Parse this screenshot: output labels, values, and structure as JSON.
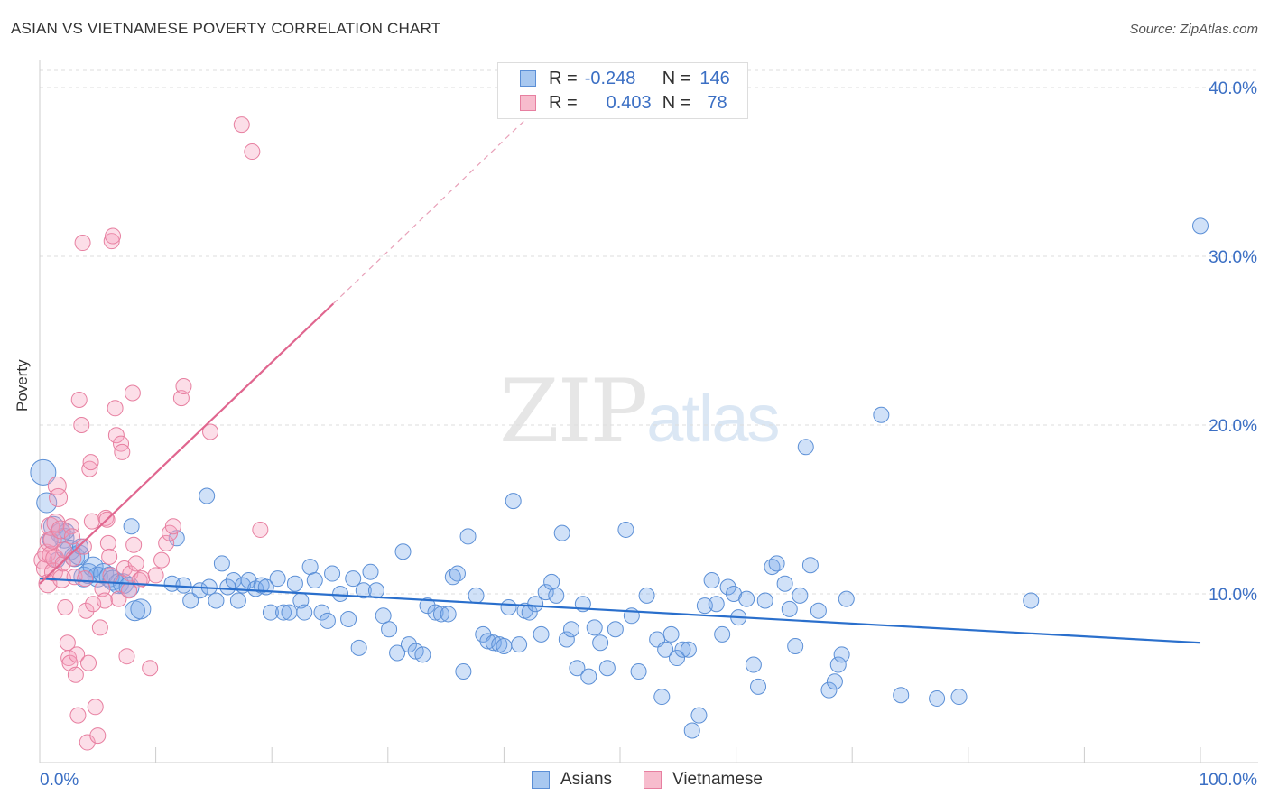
{
  "header": {
    "title": "ASIAN VS VIETNAMESE POVERTY CORRELATION CHART",
    "source": "Source: ZipAtlas.com"
  },
  "watermark": {
    "zip": "ZIP",
    "atlas": "atlas"
  },
  "stats_legend": {
    "rows": [
      {
        "r_label": "R =",
        "r_value": "-0.248",
        "n_label": "N =",
        "n_value": "146",
        "color": "#a8c8f0",
        "stroke": "#5b8fd6"
      },
      {
        "r_label": "R =",
        "r_value": "0.403",
        "n_label": "N =",
        "n_value": "78",
        "color": "#f7bccd",
        "stroke": "#e77fa0"
      }
    ]
  },
  "series_legend": {
    "asians": "Asians",
    "vietnamese": "Vietnamese"
  },
  "colors": {
    "asian_fill": "rgba(120,170,235,0.35)",
    "asian_stroke": "#5b8fd6",
    "asian_line": "#2a6fcc",
    "viet_fill": "rgba(245,160,190,0.35)",
    "viet_stroke": "#e77fa0",
    "viet_line": "#e0668f",
    "axis_text": "#3b6fc4",
    "grid": "#dddddd"
  },
  "chart_data": {
    "type": "scatter",
    "title": "ASIAN VS VIETNAMESE POVERTY CORRELATION CHART",
    "xlabel": "",
    "ylabel": "Poverty",
    "xlim": [
      0,
      100
    ],
    "ylim": [
      0,
      40
    ],
    "x_tick_labels": [
      "0.0%",
      "100.0%"
    ],
    "y_ticks": [
      10,
      20,
      30,
      40
    ],
    "y_tick_labels": [
      "10.0%",
      "20.0%",
      "30.0%",
      "40.0%"
    ],
    "grid": true,
    "legend_position": "top-center",
    "series": [
      {
        "name": "Asians",
        "r": -0.248,
        "n": 146,
        "trend": {
          "x": [
            0,
            100
          ],
          "y": [
            10.9,
            7.1
          ]
        },
        "points": [
          [
            0.3,
            17.2
          ],
          [
            0.6,
            15.4
          ],
          [
            1.2,
            14.0
          ],
          [
            1.8,
            13.6
          ],
          [
            2.1,
            13.3
          ],
          [
            2.6,
            12.6
          ],
          [
            3.0,
            12.2
          ],
          [
            3.4,
            12.3
          ],
          [
            3.8,
            11.0
          ],
          [
            4.2,
            11.2
          ],
          [
            4.6,
            11.6
          ],
          [
            5.0,
            11.0
          ],
          [
            5.5,
            11.2
          ],
          [
            6.0,
            11.0
          ],
          [
            6.3,
            10.8
          ],
          [
            6.8,
            10.6
          ],
          [
            7.2,
            10.6
          ],
          [
            7.7,
            10.4
          ],
          [
            8.2,
            9.0
          ],
          [
            8.7,
            9.1
          ],
          [
            2.3,
            13.7
          ],
          [
            3.5,
            12.8
          ],
          [
            7.9,
            14.0
          ],
          [
            11.8,
            13.3
          ],
          [
            14.4,
            15.8
          ],
          [
            11.4,
            10.6
          ],
          [
            12.4,
            10.5
          ],
          [
            13.0,
            9.6
          ],
          [
            13.8,
            10.2
          ],
          [
            14.6,
            10.4
          ],
          [
            15.2,
            9.6
          ],
          [
            15.7,
            11.8
          ],
          [
            16.2,
            10.4
          ],
          [
            16.7,
            10.8
          ],
          [
            17.1,
            9.6
          ],
          [
            17.5,
            10.5
          ],
          [
            18.0,
            10.8
          ],
          [
            18.6,
            10.3
          ],
          [
            19.1,
            10.5
          ],
          [
            19.5,
            10.4
          ],
          [
            19.9,
            8.9
          ],
          [
            20.5,
            10.9
          ],
          [
            21.0,
            8.9
          ],
          [
            21.5,
            8.9
          ],
          [
            22.0,
            10.6
          ],
          [
            22.5,
            9.6
          ],
          [
            22.8,
            8.9
          ],
          [
            23.3,
            11.6
          ],
          [
            23.7,
            10.8
          ],
          [
            24.3,
            8.9
          ],
          [
            24.8,
            8.4
          ],
          [
            25.2,
            11.2
          ],
          [
            25.9,
            10.0
          ],
          [
            26.6,
            8.5
          ],
          [
            27.0,
            10.9
          ],
          [
            27.5,
            6.8
          ],
          [
            27.9,
            10.2
          ],
          [
            28.5,
            11.3
          ],
          [
            29.0,
            10.2
          ],
          [
            29.6,
            8.7
          ],
          [
            30.1,
            7.9
          ],
          [
            30.8,
            6.5
          ],
          [
            31.3,
            12.5
          ],
          [
            31.8,
            7.0
          ],
          [
            32.4,
            6.6
          ],
          [
            33.0,
            6.4
          ],
          [
            33.4,
            9.3
          ],
          [
            34.1,
            8.9
          ],
          [
            34.6,
            8.8
          ],
          [
            35.2,
            8.8
          ],
          [
            35.6,
            11.0
          ],
          [
            36.0,
            11.2
          ],
          [
            36.5,
            5.4
          ],
          [
            36.9,
            13.4
          ],
          [
            37.6,
            9.9
          ],
          [
            38.2,
            7.6
          ],
          [
            38.6,
            7.2
          ],
          [
            39.1,
            7.1
          ],
          [
            39.6,
            7.0
          ],
          [
            40.0,
            6.9
          ],
          [
            40.4,
            9.2
          ],
          [
            40.8,
            15.5
          ],
          [
            41.3,
            7.0
          ],
          [
            41.8,
            9.0
          ],
          [
            42.2,
            8.9
          ],
          [
            42.7,
            9.4
          ],
          [
            43.2,
            7.6
          ],
          [
            43.6,
            10.1
          ],
          [
            44.1,
            10.7
          ],
          [
            44.5,
            9.9
          ],
          [
            45.0,
            13.6
          ],
          [
            45.4,
            7.3
          ],
          [
            45.8,
            7.9
          ],
          [
            46.3,
            5.6
          ],
          [
            46.8,
            9.4
          ],
          [
            47.3,
            5.1
          ],
          [
            47.8,
            8.0
          ],
          [
            48.3,
            7.1
          ],
          [
            48.9,
            5.6
          ],
          [
            49.6,
            7.9
          ],
          [
            50.5,
            13.8
          ],
          [
            51.0,
            8.7
          ],
          [
            51.6,
            5.4
          ],
          [
            52.3,
            9.9
          ],
          [
            53.2,
            7.3
          ],
          [
            53.6,
            3.9
          ],
          [
            53.9,
            6.7
          ],
          [
            54.4,
            7.6
          ],
          [
            54.9,
            6.2
          ],
          [
            55.4,
            6.7
          ],
          [
            55.9,
            6.7
          ],
          [
            56.2,
            1.9
          ],
          [
            56.8,
            2.8
          ],
          [
            57.3,
            9.3
          ],
          [
            57.9,
            10.8
          ],
          [
            58.3,
            9.4
          ],
          [
            58.8,
            7.6
          ],
          [
            59.3,
            10.4
          ],
          [
            59.8,
            10.0
          ],
          [
            60.2,
            8.6
          ],
          [
            60.9,
            9.7
          ],
          [
            61.5,
            5.8
          ],
          [
            61.9,
            4.5
          ],
          [
            62.5,
            9.6
          ],
          [
            63.1,
            11.6
          ],
          [
            63.5,
            11.8
          ],
          [
            64.2,
            10.6
          ],
          [
            64.6,
            9.1
          ],
          [
            65.1,
            6.9
          ],
          [
            65.5,
            9.9
          ],
          [
            66.0,
            18.7
          ],
          [
            66.4,
            11.7
          ],
          [
            67.1,
            9.0
          ],
          [
            68.0,
            4.3
          ],
          [
            68.5,
            4.8
          ],
          [
            68.8,
            5.8
          ],
          [
            69.1,
            6.4
          ],
          [
            69.5,
            9.7
          ],
          [
            72.5,
            20.6
          ],
          [
            74.2,
            4.0
          ],
          [
            77.3,
            3.8
          ],
          [
            79.2,
            3.9
          ],
          [
            85.4,
            9.6
          ],
          [
            100.0,
            31.8
          ],
          [
            0.9,
            13.2
          ],
          [
            1.5,
            12.0
          ]
        ]
      },
      {
        "name": "Vietnamese",
        "r": 0.403,
        "n": 78,
        "trend": {
          "x": [
            0,
            25.3
          ],
          "y": [
            10.6,
            27.2
          ]
        },
        "trend_extension": {
          "x": [
            25.3,
            42.0
          ],
          "y": [
            27.2,
            38.2
          ]
        },
        "points": [
          [
            0.3,
            12.0
          ],
          [
            0.5,
            11.5
          ],
          [
            0.6,
            12.4
          ],
          [
            0.7,
            10.6
          ],
          [
            0.8,
            13.1
          ],
          [
            0.9,
            14.0
          ],
          [
            1.0,
            12.3
          ],
          [
            1.1,
            13.2
          ],
          [
            1.2,
            11.3
          ],
          [
            1.3,
            12.1
          ],
          [
            1.4,
            14.2
          ],
          [
            1.5,
            16.4
          ],
          [
            1.6,
            15.7
          ],
          [
            1.8,
            13.8
          ],
          [
            1.9,
            10.9
          ],
          [
            2.0,
            11.8
          ],
          [
            2.1,
            12.6
          ],
          [
            2.2,
            9.2
          ],
          [
            2.4,
            7.1
          ],
          [
            2.5,
            6.2
          ],
          [
            2.6,
            5.9
          ],
          [
            2.7,
            14.0
          ],
          [
            2.8,
            13.4
          ],
          [
            2.9,
            12.1
          ],
          [
            3.0,
            11.0
          ],
          [
            3.1,
            5.2
          ],
          [
            3.2,
            6.4
          ],
          [
            3.3,
            2.8
          ],
          [
            3.4,
            21.5
          ],
          [
            3.6,
            20.0
          ],
          [
            3.7,
            30.8
          ],
          [
            3.8,
            12.8
          ],
          [
            3.9,
            10.9
          ],
          [
            4.0,
            9.0
          ],
          [
            4.1,
            1.2
          ],
          [
            4.2,
            5.9
          ],
          [
            4.3,
            17.4
          ],
          [
            4.4,
            17.8
          ],
          [
            4.5,
            14.3
          ],
          [
            4.6,
            9.4
          ],
          [
            4.8,
            3.3
          ],
          [
            5.0,
            1.6
          ],
          [
            5.2,
            8.0
          ],
          [
            5.4,
            10.3
          ],
          [
            5.6,
            9.6
          ],
          [
            5.7,
            14.5
          ],
          [
            5.8,
            14.4
          ],
          [
            5.9,
            13.0
          ],
          [
            6.0,
            12.2
          ],
          [
            6.1,
            11.1
          ],
          [
            6.2,
            30.9
          ],
          [
            6.3,
            31.2
          ],
          [
            6.5,
            21.0
          ],
          [
            6.6,
            19.4
          ],
          [
            6.8,
            9.7
          ],
          [
            7.0,
            18.9
          ],
          [
            7.1,
            18.4
          ],
          [
            7.3,
            11.5
          ],
          [
            7.5,
            6.3
          ],
          [
            7.7,
            10.2
          ],
          [
            7.8,
            11.2
          ],
          [
            8.0,
            21.9
          ],
          [
            8.1,
            12.9
          ],
          [
            8.3,
            11.8
          ],
          [
            8.6,
            10.8
          ],
          [
            8.8,
            10.9
          ],
          [
            9.5,
            5.6
          ],
          [
            10.0,
            11.1
          ],
          [
            10.5,
            12.0
          ],
          [
            10.9,
            13.0
          ],
          [
            11.2,
            13.6
          ],
          [
            11.5,
            14.0
          ],
          [
            12.2,
            21.6
          ],
          [
            12.4,
            22.3
          ],
          [
            14.7,
            19.6
          ],
          [
            19.0,
            13.8
          ],
          [
            17.4,
            37.8
          ],
          [
            18.3,
            36.2
          ]
        ]
      }
    ]
  }
}
